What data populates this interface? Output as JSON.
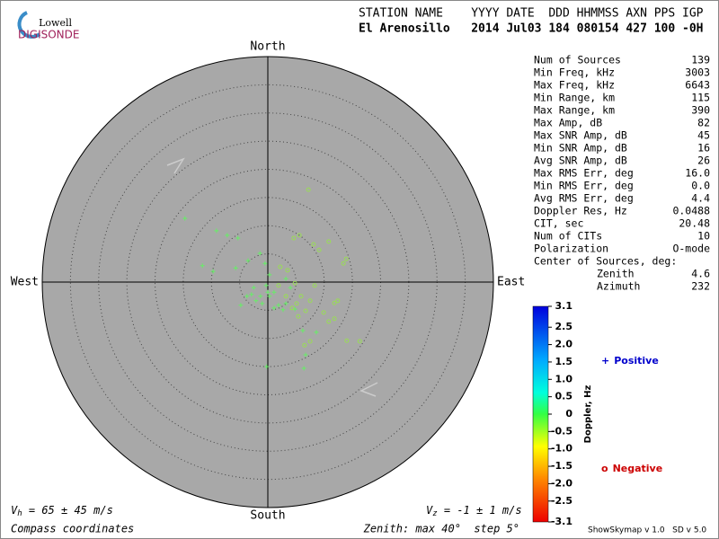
{
  "logo": {
    "top": "Lowell",
    "bottom": "DIGISONDE"
  },
  "header": {
    "line1": "STATION NAME    YYYY DATE  DDD HHMMSS AXN PPS IGP",
    "line2": "El Arenosillo   2014 Jul03 184 080154 427 100 -0H"
  },
  "chart_data": {
    "type": "skymap",
    "compass": {
      "north": "North",
      "south": "South",
      "east": "East",
      "west": "West"
    },
    "xlim": [
      -40,
      40
    ],
    "ylim": [
      -40,
      40
    ],
    "rings": [
      5,
      10,
      15,
      20,
      25,
      30,
      35,
      40
    ],
    "series": [
      {
        "name": "Positive",
        "marker": "+",
        "color": "#66ee66",
        "legend_color": "#0000cc",
        "x": [
          -14.7,
          -9.1,
          -7.2,
          -5.3,
          -11.6,
          -9.7,
          -5.7,
          -3.5,
          -1.4,
          -0.5,
          0.3,
          -2.5,
          -3.7,
          -4.8,
          -1.3,
          0.3,
          1.1,
          1.9,
          -0.2,
          4.0,
          3.2,
          0,
          -2.1,
          6.2,
          6.7,
          6.4,
          8.6,
          2.7,
          1.1,
          -2.9,
          -1.0,
          3.2,
          4.8,
          -0.3
        ],
        "y": [
          11.3,
          9.1,
          8.3,
          7.8,
          2.9,
          1.9,
          2.5,
          3.8,
          5.1,
          3.3,
          1.3,
          -1.0,
          -2.5,
          -4.1,
          -2.5,
          -2.5,
          -1.8,
          -4.1,
          -15.0,
          -1.0,
          0.6,
          -1.8,
          -3.3,
          -8.6,
          -12.9,
          -15.3,
          -8.9,
          -4.9,
          -4.6,
          -2.2,
          -3.8,
          -3.8,
          -4.8,
          -0.6
        ]
      },
      {
        "name": "Negative",
        "marker": "o",
        "color": "#99dd55",
        "legend_color": "#cc0000",
        "x": [
          7.2,
          5.6,
          8.1,
          10.8,
          13.9,
          13.4,
          4.8,
          8.3,
          11.8,
          12.4,
          10.8,
          11.8,
          14.0,
          16.3,
          7.5,
          6.5,
          4.3,
          5.1,
          5.9,
          6.7,
          5.4,
          9.9,
          3.5,
          2.2,
          9.1,
          4.6,
          1.9,
          3.2,
          7.5
        ],
        "y": [
          16.4,
          8.3,
          6.7,
          7.2,
          4.1,
          3.3,
          -0.2,
          -0.6,
          -3.7,
          -3.3,
          -7.0,
          -6.5,
          -10.4,
          -10.5,
          -10.5,
          -11.2,
          -4.6,
          -3.8,
          -2.5,
          -5.1,
          -6.1,
          -5.4,
          2.1,
          2.7,
          5.7,
          7.8,
          -0.6,
          -2.5,
          -3.3
        ]
      }
    ],
    "colorbar": {
      "label": "Doppler, Hz",
      "lim": [
        -3.1,
        3.1
      ],
      "ticks": [
        3.1,
        2.5,
        {
          "value": 2,
          "label": "2.0"
        },
        1.5,
        {
          "value": 1,
          "label": "1.0"
        },
        0.5,
        0,
        -0.5,
        {
          "value": -1,
          "label": "-1.0"
        },
        -1.5,
        {
          "value": -2,
          "label": "-2.0"
        },
        -2.5,
        -3.1
      ]
    }
  },
  "table": [
    [
      "Num of Sources",
      "139"
    ],
    [
      "Min Freq, kHz",
      "3003"
    ],
    [
      "Max Freq, kHz",
      "6643"
    ],
    [
      "Min Range, km",
      "115"
    ],
    [
      "Max Range, km",
      "390"
    ],
    [
      "Max Amp, dB",
      "82"
    ],
    [
      "Max SNR Amp, dB",
      "45"
    ],
    [
      "Min SNR Amp, dB",
      "16"
    ],
    [
      "Avg SNR Amp, dB",
      "26"
    ],
    [
      "Max RMS Err, deg",
      "16.0"
    ],
    [
      "Min RMS Err, deg",
      "0.0"
    ],
    [
      "Avg RMS Err, deg",
      "4.4"
    ],
    [
      "Doppler Res, Hz",
      "0.0488"
    ],
    [
      "CIT, sec",
      "20.48"
    ],
    [
      "Num of CITs",
      "10"
    ],
    [
      "Polarization",
      "O-mode"
    ]
  ],
  "center": {
    "title": "Center of Sources, deg:",
    "rows": [
      [
        "Zenith",
        "4.6"
      ],
      [
        "Azimuth",
        "232"
      ]
    ]
  },
  "footer": {
    "vh": "V",
    "vh_sub": "h",
    "vh_rest": " = 65 ± 45 m/s",
    "vz": "V",
    "vz_sub": "z",
    "vz_rest": " = -1 ± 1 m/s",
    "coords": "Compass coordinates",
    "zenith": "Zenith: max 40°  step 5°",
    "version": "ShowSkymap v 1.0   SD v 5.0"
  }
}
